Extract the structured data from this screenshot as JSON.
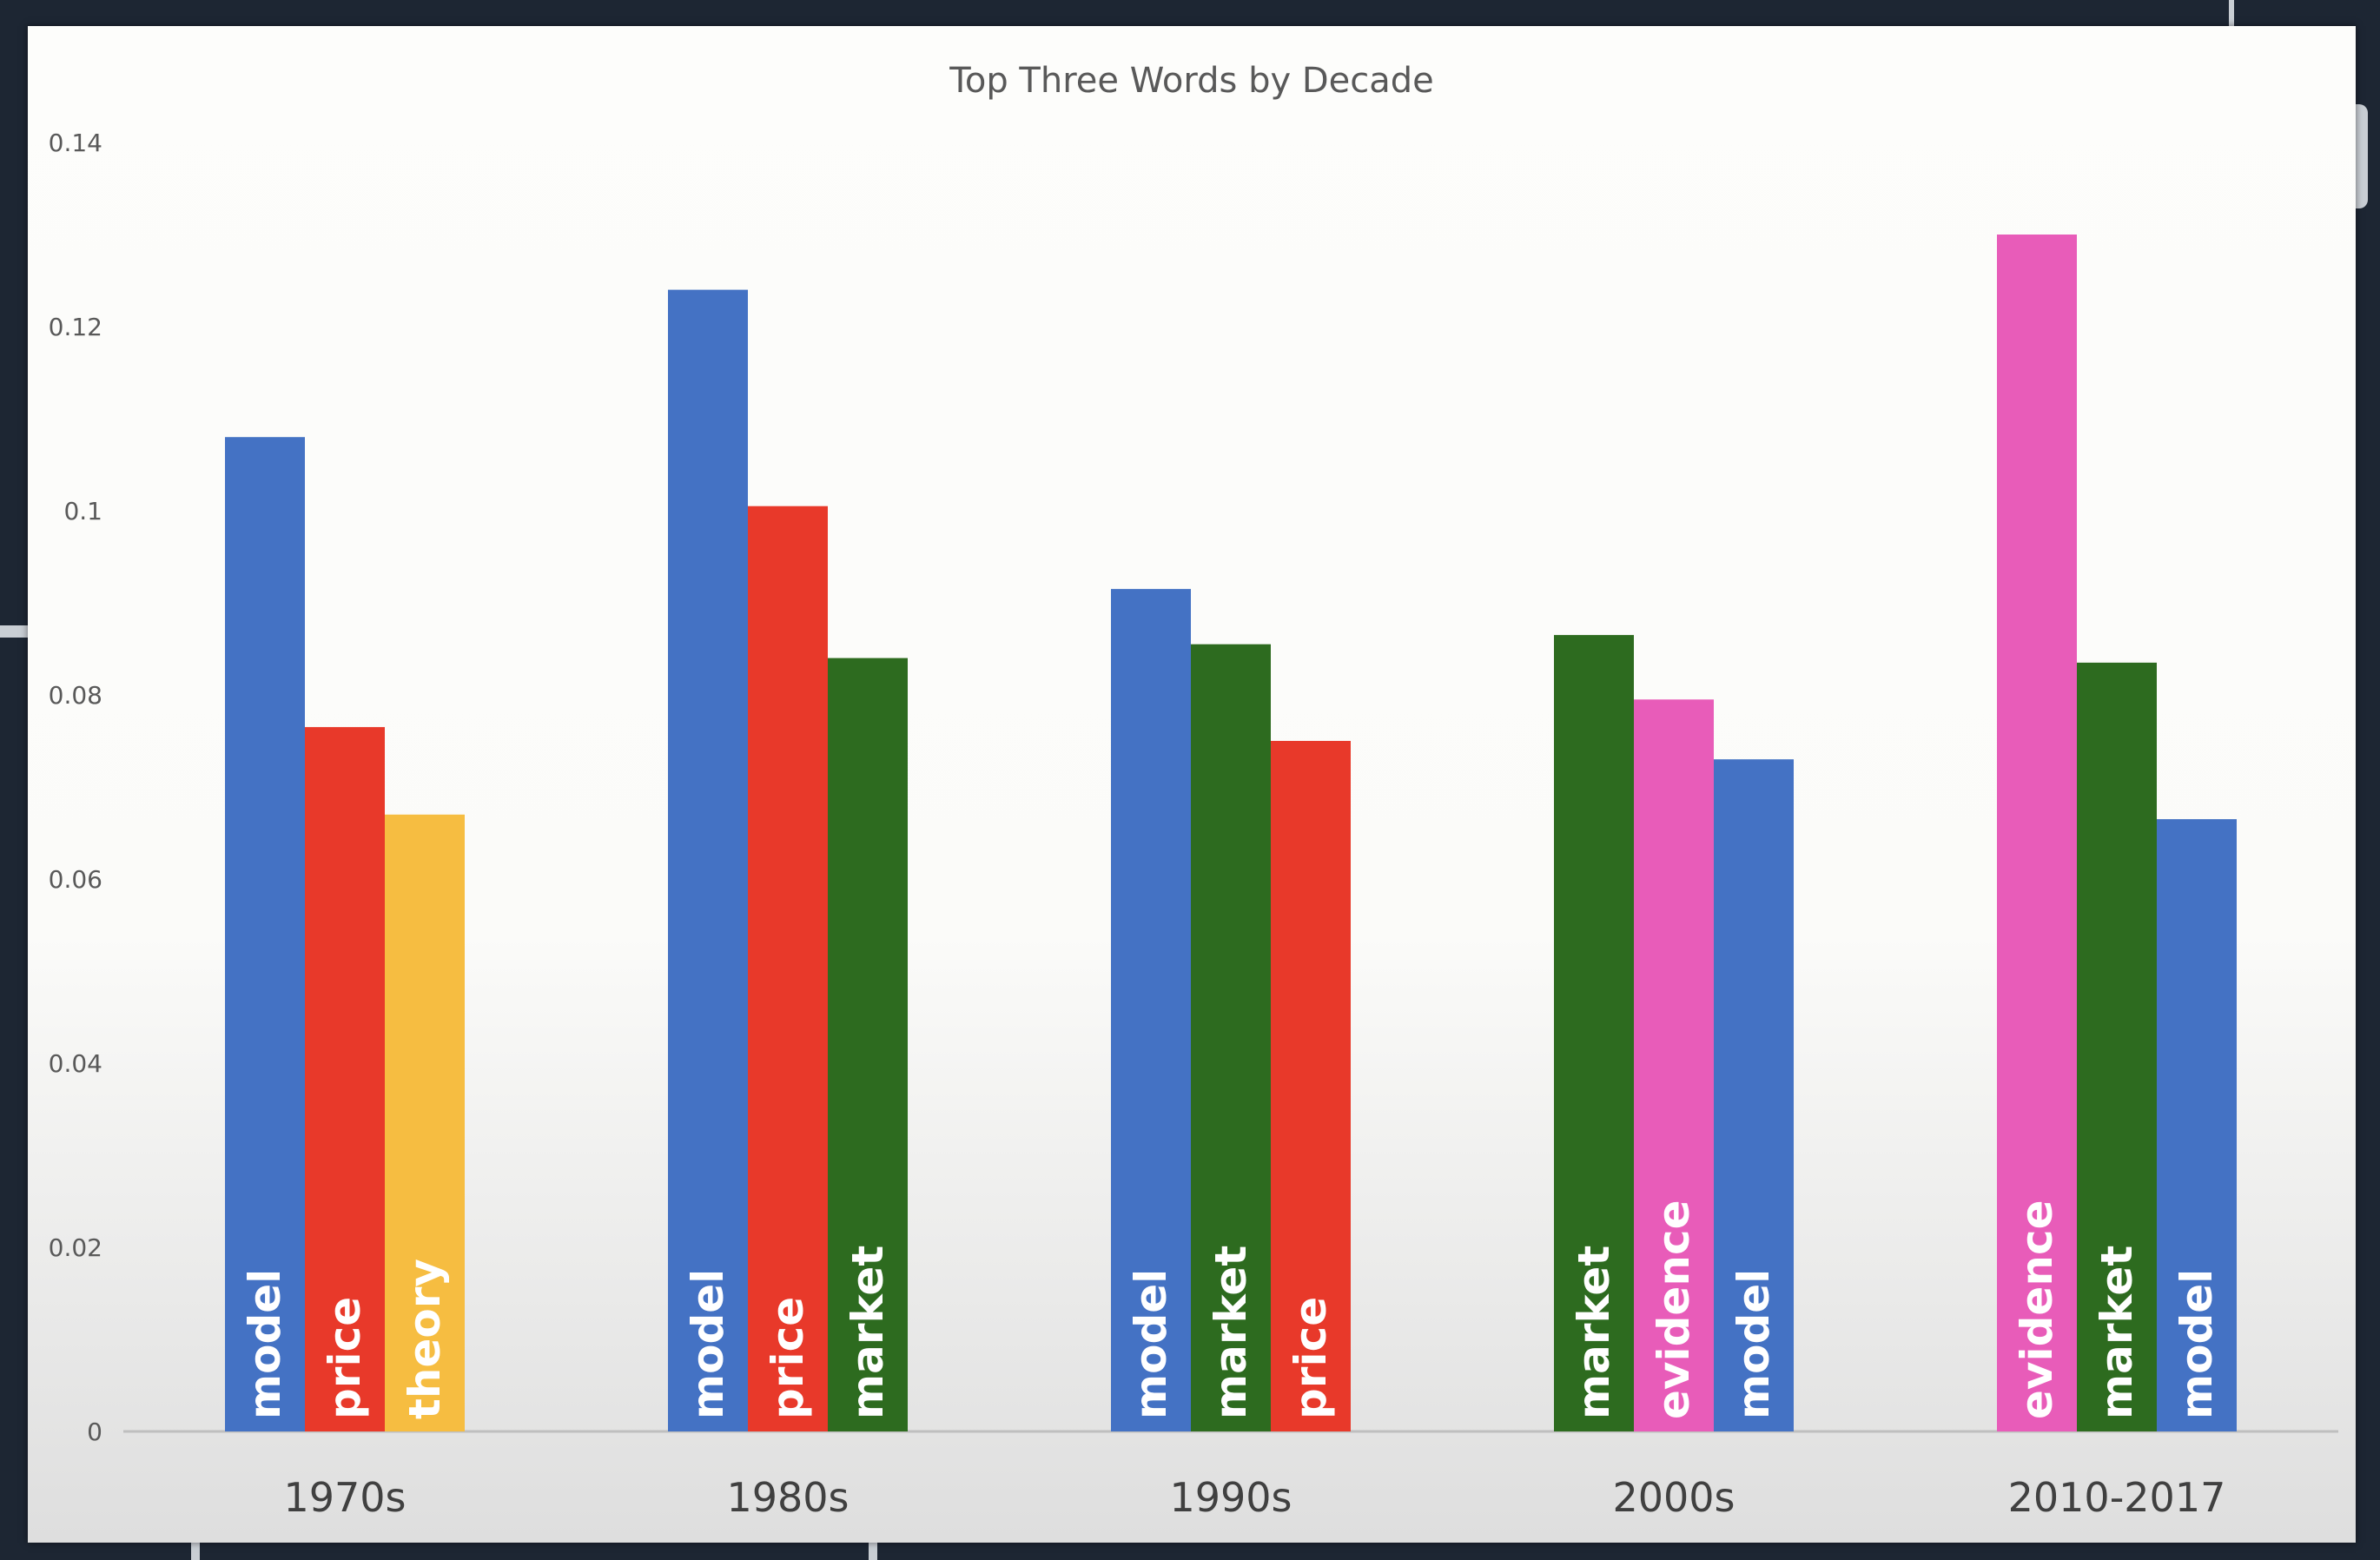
{
  "chart_data": {
    "type": "bar",
    "title": "Top Three Words by Decade",
    "xlabel": "",
    "ylabel": "",
    "ylim": [
      0,
      0.14
    ],
    "yticks": [
      0,
      0.02,
      0.04,
      0.06,
      0.08,
      0.1,
      0.12,
      0.14
    ],
    "ytick_labels": [
      "0",
      "0.02",
      "0.04",
      "0.06",
      "0.08",
      "0.1",
      "0.12",
      "0.14"
    ],
    "grid": false,
    "legend": "none",
    "groups": [
      {
        "category": "1970s",
        "bars": [
          {
            "word": "model",
            "value": 0.108,
            "color": "#4472c4"
          },
          {
            "word": "price",
            "value": 0.0765,
            "color": "#e8392a"
          },
          {
            "word": "theory",
            "value": 0.067,
            "color": "#f6bd41"
          }
        ]
      },
      {
        "category": "1980s",
        "bars": [
          {
            "word": "model",
            "value": 0.124,
            "color": "#4472c4"
          },
          {
            "word": "price",
            "value": 0.1005,
            "color": "#e8392a"
          },
          {
            "word": "market",
            "value": 0.084,
            "color": "#2d6b1f"
          }
        ]
      },
      {
        "category": "1990s",
        "bars": [
          {
            "word": "model",
            "value": 0.0915,
            "color": "#4472c4"
          },
          {
            "word": "market",
            "value": 0.0855,
            "color": "#2d6b1f"
          },
          {
            "word": "price",
            "value": 0.075,
            "color": "#e8392a"
          }
        ]
      },
      {
        "category": "2000s",
        "bars": [
          {
            "word": "market",
            "value": 0.0865,
            "color": "#2d6b1f"
          },
          {
            "word": "evidence",
            "value": 0.0795,
            "color": "#e85cb9"
          },
          {
            "word": "model",
            "value": 0.073,
            "color": "#4472c4"
          }
        ]
      },
      {
        "category": "2010-2017",
        "bars": [
          {
            "word": "evidence",
            "value": 0.13,
            "color": "#e85cb9"
          },
          {
            "word": "market",
            "value": 0.0835,
            "color": "#2d6b1f"
          },
          {
            "word": "model",
            "value": 0.0665,
            "color": "#4472c4"
          }
        ]
      }
    ]
  }
}
